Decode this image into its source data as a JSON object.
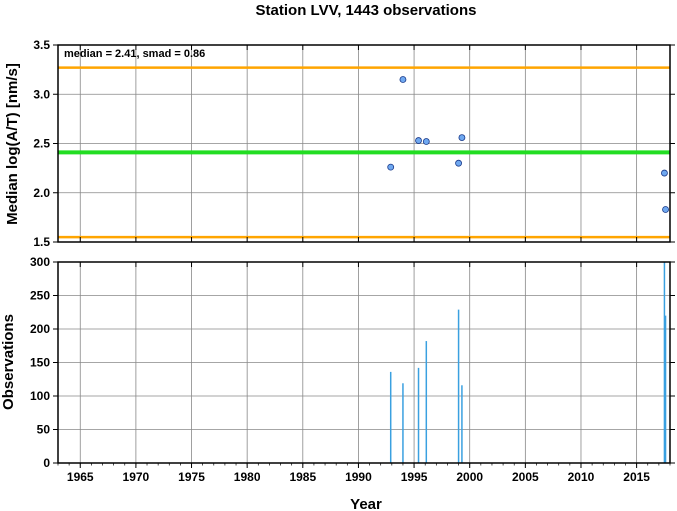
{
  "title": "Station LVV, 1443 observations",
  "chart_data": [
    {
      "type": "scatter",
      "ylabel": "Median log(A/T) [nm/s]",
      "xlim": [
        1963,
        2018
      ],
      "ylim": [
        1.5,
        3.5
      ],
      "yticks": [
        "1.5",
        "2.0",
        "2.5",
        "3.0",
        "3.5"
      ],
      "annotation": "median = 2.41, smad = 0.86",
      "median_line": {
        "value": 2.41,
        "color": "#22dd22"
      },
      "bound_lines": [
        {
          "value": 3.27,
          "color": "#ffa500"
        },
        {
          "value": 1.55,
          "color": "#ffa500"
        }
      ],
      "point_color": "#6fa8f0",
      "x": [
        1992.9,
        1994.0,
        1995.4,
        1996.1,
        1999.0,
        1999.3,
        2017.5,
        2017.6
      ],
      "y": [
        2.26,
        3.15,
        2.53,
        2.52,
        2.3,
        2.56,
        2.2,
        1.83
      ],
      "grid": true
    },
    {
      "type": "bar",
      "xlabel": "Year",
      "ylabel": "Observations",
      "xlim": [
        1963,
        2018
      ],
      "ylim": [
        0,
        300
      ],
      "yticks": [
        "0",
        "50",
        "100",
        "150",
        "200",
        "250",
        "300"
      ],
      "xticks": [
        "1965",
        "1970",
        "1975",
        "1980",
        "1985",
        "1990",
        "1995",
        "2000",
        "2005",
        "2010",
        "2015"
      ],
      "bar_color": "#3aa0e0",
      "x": [
        1992.9,
        1994.0,
        1995.4,
        1996.1,
        1999.0,
        1999.3,
        2017.5,
        2017.6
      ],
      "values": [
        136,
        119,
        142,
        182,
        229,
        116,
        300,
        220
      ],
      "grid": true
    }
  ]
}
